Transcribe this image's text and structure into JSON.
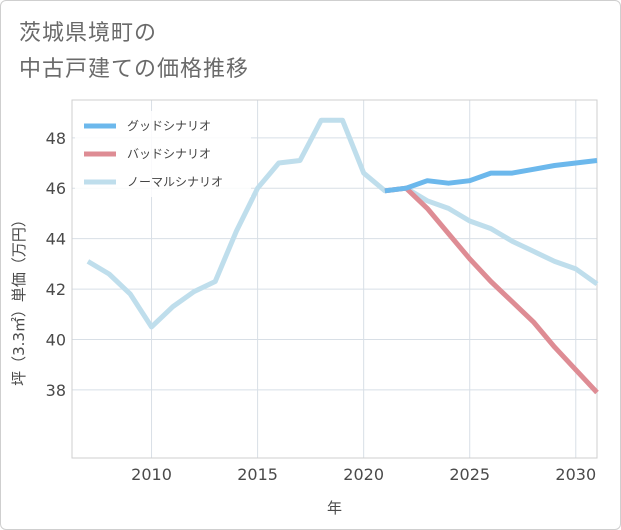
{
  "page": {
    "title_line1": "茨城県境町の",
    "title_line2": "中古戸建ての価格推移"
  },
  "chart_data": {
    "type": "line",
    "xlabel": "年",
    "ylabel": "坪（3.3㎡）単価（万円）",
    "xlim": [
      2006.25,
      2031
    ],
    "ylim": [
      35.3,
      49.5
    ],
    "x_ticks": [
      2010,
      2015,
      2020,
      2025,
      2030
    ],
    "y_ticks": [
      38,
      40,
      42,
      44,
      46,
      48
    ],
    "grid": true,
    "legend_position": "top-left",
    "series": [
      {
        "name": "グッドシナリオ",
        "color": "#6cb8ec",
        "x": [
          2021,
          2022,
          2023,
          2024,
          2025,
          2026,
          2027,
          2028,
          2029,
          2030,
          2031
        ],
        "y": [
          45.9,
          46.0,
          46.3,
          46.2,
          46.3,
          46.6,
          46.6,
          46.75,
          46.9,
          47.0,
          47.1
        ]
      },
      {
        "name": "バッドシナリオ",
        "color": "#de8c94",
        "x": [
          2021,
          2022,
          2023,
          2024,
          2025,
          2026,
          2027,
          2028,
          2029,
          2030,
          2031
        ],
        "y": [
          45.9,
          46.0,
          45.2,
          44.2,
          43.2,
          42.3,
          41.5,
          40.7,
          39.7,
          38.8,
          37.9
        ]
      },
      {
        "name": "ノーマルシナリオ",
        "color": "#bfdeec",
        "x": [
          2007,
          2008,
          2009,
          2010,
          2011,
          2012,
          2013,
          2014,
          2015,
          2016,
          2017,
          2018,
          2019,
          2020,
          2021,
          2022,
          2023,
          2024,
          2025,
          2026,
          2027,
          2028,
          2029,
          2030,
          2031
        ],
        "y": [
          43.1,
          42.6,
          41.8,
          40.5,
          41.3,
          41.9,
          42.3,
          44.3,
          46.0,
          47.0,
          47.1,
          48.7,
          48.7,
          46.6,
          45.9,
          46.0,
          45.5,
          45.2,
          44.7,
          44.4,
          43.9,
          43.5,
          43.1,
          42.8,
          42.2
        ]
      }
    ]
  }
}
